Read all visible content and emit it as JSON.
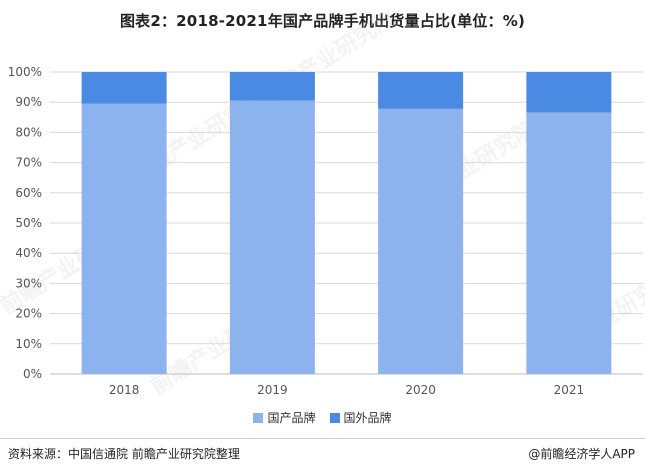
{
  "title": "图表2：2018-2021年国产品牌手机出货量占比(单位：%)",
  "source": "资料来源：中国信通院 前瞻产业研究院整理",
  "brand": "@前瞻经济学人APP",
  "watermark": "前瞻产业研究院",
  "colors": {
    "domestic": "#8cb3ee",
    "foreign": "#4a8ae3",
    "grid": "#d9d9d9",
    "axis": "#bfbfbf"
  },
  "chart_data": {
    "type": "bar",
    "stacked": true,
    "categories": [
      "2018",
      "2019",
      "2020",
      "2021"
    ],
    "series": [
      {
        "name": "国产品牌",
        "color": "#8cb3ee",
        "values": [
          89.5,
          90.5,
          87.8,
          86.6
        ]
      },
      {
        "name": "国外品牌",
        "color": "#4a8ae3",
        "values": [
          10.5,
          9.5,
          12.2,
          13.4
        ]
      }
    ],
    "yticks": [
      "0%",
      "10%",
      "20%",
      "30%",
      "40%",
      "50%",
      "60%",
      "70%",
      "80%",
      "90%",
      "100%"
    ],
    "ylim": [
      0,
      100
    ],
    "grid": true,
    "legend": "bottom-center"
  }
}
